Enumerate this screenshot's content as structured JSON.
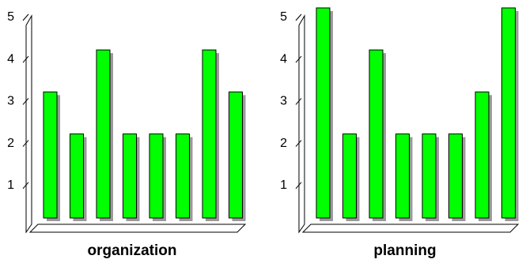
{
  "chart_data": [
    {
      "type": "bar",
      "title": "organization",
      "categories": [
        null,
        null,
        null,
        null,
        null,
        null,
        null,
        null
      ],
      "values": [
        3,
        2,
        4,
        2,
        2,
        2,
        4,
        3
      ],
      "color": "#00ff00",
      "ylim": [
        0,
        5
      ],
      "yticks": [
        1,
        2,
        3,
        4,
        5
      ]
    },
    {
      "type": "bar",
      "title": "planning",
      "categories": [
        null,
        null,
        null,
        null,
        null,
        null,
        null,
        null
      ],
      "values": [
        5,
        2,
        4,
        2,
        2,
        2,
        3,
        5
      ],
      "color": "#00ff00",
      "ylim": [
        0,
        5
      ],
      "yticks": [
        1,
        2,
        3,
        4,
        5
      ]
    }
  ]
}
